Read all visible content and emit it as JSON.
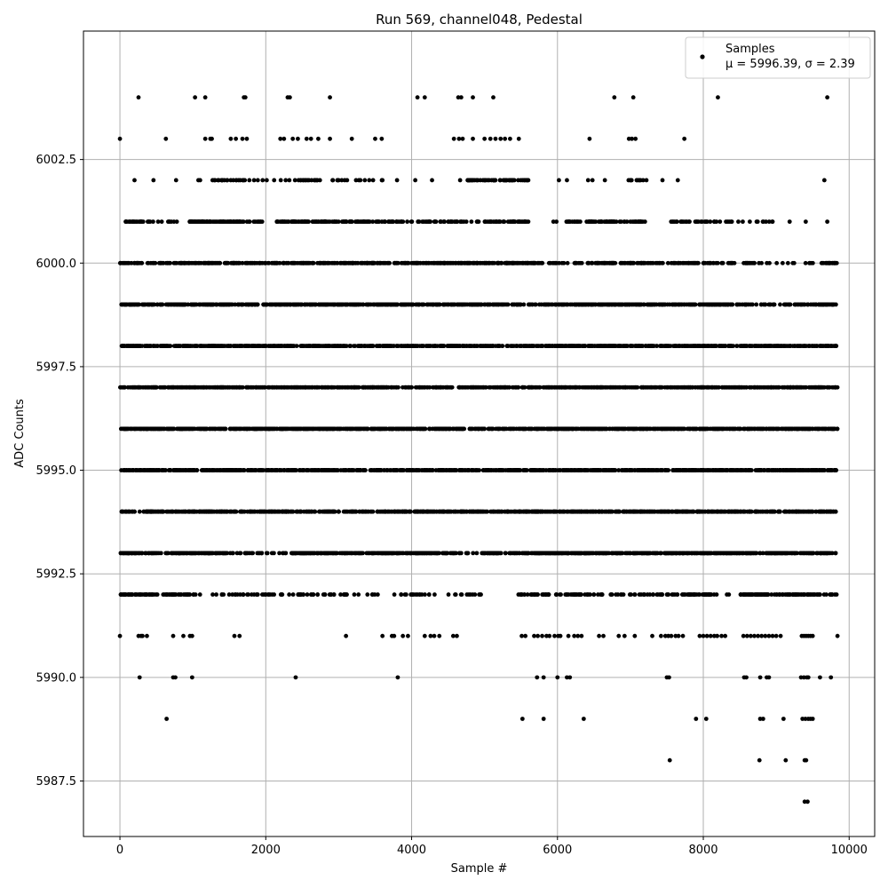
{
  "chart_data": {
    "type": "scatter",
    "title": "Run 569, channel048, Pedestal",
    "xlabel": "Sample #",
    "ylabel": "ADC Counts",
    "xlim": [
      -500,
      10350
    ],
    "ylim": [
      5986.16,
      6005.6
    ],
    "xticks": [
      0,
      2000,
      4000,
      6000,
      8000,
      10000
    ],
    "xtick_labels": [
      "0",
      "2000",
      "4000",
      "6000",
      "8000",
      "10000"
    ],
    "yticks": [
      5987.5,
      5990.0,
      5992.5,
      5995.0,
      5997.5,
      6000.0,
      6002.5
    ],
    "ytick_labels": [
      "5987.5",
      "5990.0",
      "5992.5",
      "5995.0",
      "5997.5",
      "6000.0",
      "6002.5"
    ],
    "grid": true,
    "legend_position": "top-right",
    "marker_color": "#000000",
    "series": [
      {
        "name": "Samples",
        "stats_label": "μ = 5996.39, σ = 2.39",
        "x_range": [
          0,
          9840
        ],
        "levels": [
          {
            "y": 6004,
            "x": [
              255,
              1030,
              1170,
              1700,
              1720,
              2300,
              2330,
              2880,
              4080,
              4180,
              4640,
              4680,
              4840,
              5120,
              6780,
              7040,
              8200,
              9700
            ]
          },
          {
            "y": 6003,
            "x": [
              0,
              630,
              1170,
              1240,
              1260,
              1520,
              1590,
              1680,
              1740,
              2200,
              2250,
              2370,
              2440,
              2560,
              2620,
              2720,
              2880,
              3180,
              3500,
              3590,
              4580,
              4650,
              4700,
              4840,
              5000,
              5080,
              5150,
              5220,
              5280,
              5350,
              5470,
              6440,
              6980,
              7020,
              7070,
              7740
            ]
          },
          {
            "y": 6002,
            "items": [
              [
                200,
                1
              ],
              [
                460,
                1
              ],
              [
                770,
                1
              ],
              [
                1050,
                20
              ],
              [
                1680,
                10
              ],
              [
                2200,
                10
              ],
              [
                2540,
                15
              ],
              [
                3000,
                10
              ],
              [
                3600,
                1
              ],
              [
                3800,
                1
              ],
              [
                4050,
                1
              ],
              [
                4280,
                1
              ],
              [
                4650,
                25
              ],
              [
                5050,
                40
              ],
              [
                5600,
                1
              ],
              [
                6020,
                1
              ],
              [
                6130,
                1
              ],
              [
                6420,
                1
              ],
              [
                6480,
                1
              ],
              [
                6650,
                1
              ],
              [
                6950,
                10
              ],
              [
                7220,
                1
              ],
              [
                7440,
                1
              ],
              [
                7650,
                1
              ],
              [
                9660,
                1
              ]
            ]
          },
          {
            "y": 6001,
            "items": [
              [
                80,
                25
              ],
              [
                420,
                8
              ],
              [
                780,
                1
              ],
              [
                950,
                20
              ],
              [
                1100,
                60
              ],
              [
                1700,
                10
              ],
              [
                1950,
                1
              ],
              [
                2150,
                70
              ],
              [
                2900,
                30
              ],
              [
                3300,
                20
              ],
              [
                3600,
                20
              ],
              [
                3950,
                20
              ],
              [
                4400,
                20
              ],
              [
                4800,
                50
              ],
              [
                5600,
                1
              ],
              [
                5900,
                15
              ],
              [
                6400,
                40
              ],
              [
                6850,
                20
              ],
              [
                7200,
                1
              ],
              [
                7550,
                10
              ],
              [
                7750,
                10
              ],
              [
                8000,
                10
              ],
              [
                8250,
                15
              ],
              [
                8950,
                1
              ],
              [
                9100,
                2
              ],
              [
                9700,
                1
              ]
            ]
          },
          {
            "y": 6000,
            "items": [
              [
                0,
                25
              ],
              [
                350,
                25
              ],
              [
                820,
                20
              ],
              [
                1000,
                100
              ],
              [
                2000,
                120
              ],
              [
                3200,
                80
              ],
              [
                4000,
                30
              ],
              [
                4300,
                200
              ],
              [
                5800,
                5
              ],
              [
                5950,
                15
              ],
              [
                6300,
                2
              ],
              [
                6400,
                90
              ],
              [
                7300,
                10
              ],
              [
                7500,
                30
              ],
              [
                7900,
                20
              ],
              [
                8200,
                30
              ],
              [
                8700,
                5
              ],
              [
                9000,
                5
              ],
              [
                9400,
                5
              ],
              [
                9600,
                25
              ]
            ]
          },
          {
            "y": 5999,
            "items": [
              [
                0,
                60
              ],
              [
                700,
                240
              ],
              [
                3000,
                200
              ],
              [
                5000,
                40
              ],
              [
                5500,
                10
              ],
              [
                5800,
                30
              ],
              [
                6200,
                200
              ],
              [
                8200,
                40
              ],
              [
                8600,
                10
              ],
              [
                8900,
                15
              ],
              [
                9200,
                15
              ],
              [
                9500,
                30
              ]
            ]
          },
          {
            "y": 5998,
            "items": [
              [
                0,
                280
              ],
              [
                2500,
                300
              ],
              [
                5500,
                300
              ],
              [
                8000,
                200
              ]
            ]
          },
          {
            "y": 5997,
            "items": [
              [
                0,
                400
              ],
              [
                3500,
                300
              ],
              [
                6500,
                350
              ]
            ]
          },
          {
            "y": 5996,
            "items": [
              [
                0,
                400
              ],
              [
                3500,
                300
              ],
              [
                6500,
                350
              ]
            ]
          },
          {
            "y": 5995,
            "items": [
              [
                0,
                350
              ],
              [
                3400,
                300
              ],
              [
                6500,
                350
              ]
            ]
          },
          {
            "y": 5994,
            "items": [
              [
                0,
                300
              ],
              [
                3000,
                50
              ],
              [
                3700,
                200
              ],
              [
                5500,
                200
              ],
              [
                7200,
                280
              ]
            ]
          },
          {
            "y": 5993,
            "items": [
              [
                0,
                120
              ],
              [
                1300,
                30
              ],
              [
                1800,
                25
              ],
              [
                2400,
                70
              ],
              [
                3000,
                60
              ],
              [
                3700,
                80
              ],
              [
                4500,
                20
              ],
              [
                5000,
                40
              ],
              [
                5500,
                120
              ],
              [
                6500,
                100
              ],
              [
                7500,
                230
              ]
            ]
          },
          {
            "y": 5992,
            "items": [
              [
                0,
                30
              ],
              [
                300,
                20
              ],
              [
                600,
                30
              ],
              [
                1000,
                10
              ],
              [
                1500,
                10
              ],
              [
                1800,
                20
              ],
              [
                2400,
                15
              ],
              [
                2700,
                10
              ],
              [
                3000,
                10
              ],
              [
                3300,
                5
              ],
              [
                3700,
                15
              ],
              [
                4200,
                15
              ],
              [
                4950,
                1
              ],
              [
                5450,
                30
              ],
              [
                5900,
                5
              ],
              [
                6100,
                30
              ],
              [
                6600,
                10
              ],
              [
                6900,
                5
              ],
              [
                7100,
                25
              ],
              [
                7700,
                40
              ],
              [
                8100,
                5
              ],
              [
                8500,
                70
              ],
              [
                9200,
                40
              ],
              [
                9600,
                10
              ]
            ]
          },
          {
            "y": 5991,
            "x": [
              0,
              255,
              290,
              310,
              370,
              730,
              870,
              960,
              990,
              1570,
              1640,
              3100,
              3600,
              3730,
              3760,
              3880,
              3950,
              4180,
              4260,
              4310,
              4380,
              4570,
              4620,
              5510,
              5560,
              5680,
              5730,
              5790,
              5850,
              5890,
              5960,
              6010,
              6040,
              6150,
              6230,
              6280,
              6330,
              6570,
              6630,
              6840,
              6920,
              7060,
              7300,
              7420,
              7480,
              7520,
              7560,
              7620,
              7660,
              7720,
              7950,
              8000,
              8050,
              8100,
              8150,
              8190,
              8250,
              8300,
              8550,
              8600,
              8650,
              8700,
              8750,
              8800,
              8850,
              8900,
              8950,
              9000,
              9060,
              9350,
              9380,
              9410,
              9440,
              9470,
              9500,
              9840
            ]
          },
          {
            "y": 5990,
            "x": [
              270,
              730,
              760,
              990,
              2410,
              3810,
              5720,
              5810,
              6000,
              6130,
              6170,
              7500,
              7530,
              8560,
              8590,
              8780,
              8870,
              8900,
              9340,
              9380,
              9420,
              9440,
              9600,
              9750
            ]
          },
          {
            "y": 5989,
            "x": [
              640,
              5520,
              5810,
              6360,
              7900,
              8040,
              8780,
              8820,
              9100,
              9360,
              9400,
              9440,
              9470,
              9500
            ]
          },
          {
            "y": 5988,
            "x": [
              7540,
              8770,
              9130,
              9390,
              9410
            ]
          },
          {
            "y": 5987,
            "x": [
              9390,
              9430
            ]
          }
        ]
      }
    ]
  }
}
